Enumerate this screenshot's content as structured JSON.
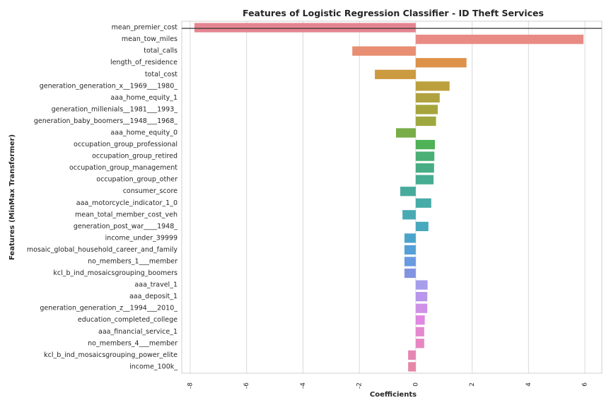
{
  "chart_data": {
    "type": "bar",
    "orientation": "horizontal",
    "title": "Features of Logistic Regression Classifier - ID Theft Services",
    "xlabel": "Coefficients",
    "ylabel": "Features (MinMax Transformer)",
    "xlim": [
      -8.3,
      6.6
    ],
    "xticks": [
      -8,
      -6,
      -4,
      -2,
      0,
      2,
      4,
      6
    ],
    "xtick_labels": [
      "-8",
      "-6",
      "-4",
      "-2",
      "0",
      "2",
      "4",
      "6"
    ],
    "grid": true,
    "legend": "none",
    "reference_line_after_first_bar": true,
    "categories": [
      "mean_premier_cost",
      "mean_tow_miles",
      "total_calls",
      "length_of_residence",
      "total_cost",
      "generation_generation_x__1969___1980_",
      "aaa_home_equity_1",
      "generation_millenials__1981___1993_",
      "generation_baby_boomers__1948___1968_",
      "aaa_home_equity_0",
      "occupation_group_professional",
      "occupation_group_retired",
      "occupation_group_management",
      "occupation_group_other",
      "consumer_score",
      "aaa_motorcycle_indicator_1_0",
      "mean_total_member_cost_veh",
      "generation_post_war____1948_",
      "income_under_39999",
      "mosaic_global_household_career_and_family",
      "no_members_1___member",
      "kcl_b_ind_mosaicsgrouping_boomers",
      "aaa_travel_1",
      "aaa_deposit_1",
      "generation_generation_z__1994___2010_",
      "education_completed_college",
      "aaa_financial_service_1",
      "no_members_4___member",
      "kcl_b_ind_mosaicsgrouping_power_elite",
      "income_100k_"
    ],
    "values": [
      -7.85,
      5.95,
      -2.25,
      1.8,
      -1.45,
      1.2,
      0.85,
      0.78,
      0.72,
      -0.7,
      0.68,
      0.66,
      0.65,
      0.63,
      -0.55,
      0.55,
      -0.47,
      0.45,
      -0.4,
      -0.4,
      -0.4,
      -0.4,
      0.42,
      0.41,
      0.41,
      0.32,
      0.3,
      0.3,
      -0.27,
      -0.27
    ],
    "colors": [
      "#e58591",
      "#e98b85",
      "#e88e72",
      "#de9148",
      "#cc9a40",
      "#bca03d",
      "#b0a240",
      "#a6a53d",
      "#9ea83f",
      "#78ad48",
      "#4fb257",
      "#4aaf75",
      "#48ad84",
      "#47ac91",
      "#47ab9c",
      "#47aba7",
      "#48aab3",
      "#49a8bd",
      "#4ca4cb",
      "#55a0d6",
      "#6a9adf",
      "#8293e0",
      "#a69deb",
      "#b896eb",
      "#cf90e7",
      "#df89e0",
      "#e488cf",
      "#e687c1",
      "#e587b3",
      "#e587a8"
    ]
  }
}
